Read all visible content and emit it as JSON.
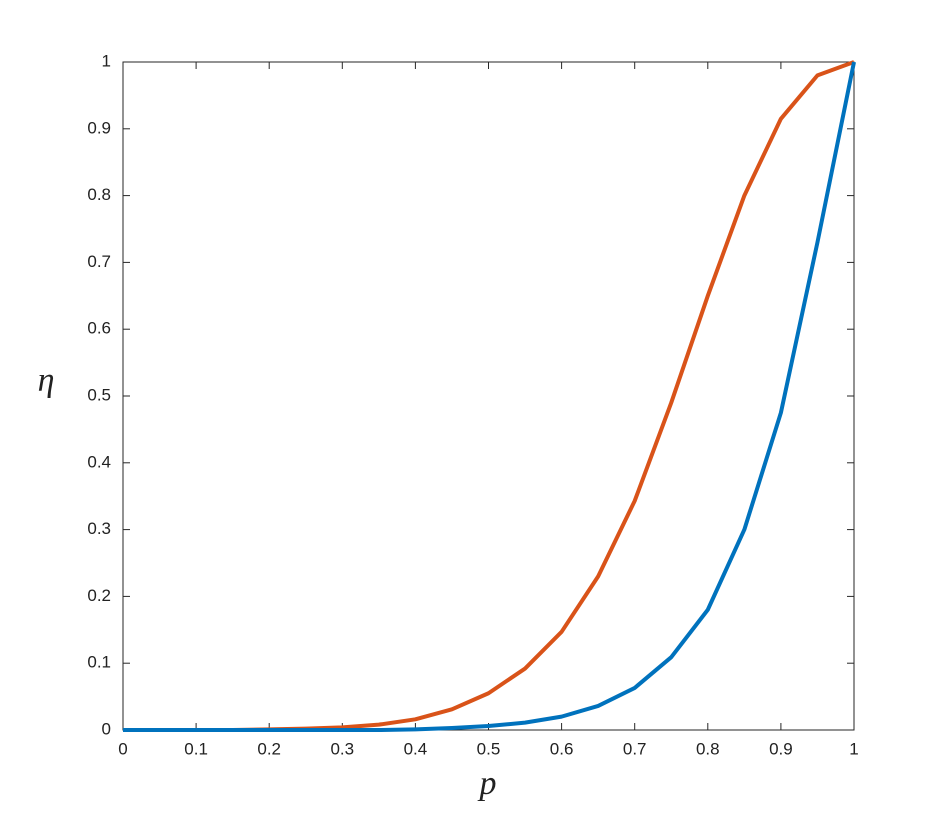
{
  "chart_data": {
    "type": "line",
    "x_label": "p",
    "y_label": "η",
    "x": [
      0,
      0.05,
      0.1,
      0.15,
      0.2,
      0.25,
      0.3,
      0.35,
      0.4,
      0.45,
      0.5,
      0.55,
      0.6,
      0.65,
      0.7,
      0.75,
      0.8,
      0.85,
      0.9,
      0.95,
      1
    ],
    "series": [
      {
        "color": "#d95319",
        "values": [
          0,
          0,
          0,
          0,
          0.001,
          0.002,
          0.004,
          0.008,
          0.016,
          0.031,
          0.055,
          0.092,
          0.147,
          0.23,
          0.343,
          0.49,
          0.65,
          0.8,
          0.915,
          0.98,
          1
        ]
      },
      {
        "color": "#0072bd",
        "values": [
          0,
          0,
          0,
          0,
          0,
          0,
          0,
          0,
          0.001,
          0.003,
          0.006,
          0.011,
          0.02,
          0.036,
          0.063,
          0.109,
          0.18,
          0.3,
          0.475,
          0.73,
          1
        ]
      }
    ],
    "xlim": [
      0,
      1
    ],
    "ylim": [
      0,
      1
    ],
    "xticks": [
      0,
      0.1,
      0.2,
      0.3,
      0.4,
      0.5,
      0.6,
      0.7,
      0.8,
      0.9,
      1
    ],
    "yticks": [
      0,
      0.1,
      0.2,
      0.3,
      0.4,
      0.5,
      0.6,
      0.7,
      0.8,
      0.9,
      1
    ],
    "grid": false
  }
}
